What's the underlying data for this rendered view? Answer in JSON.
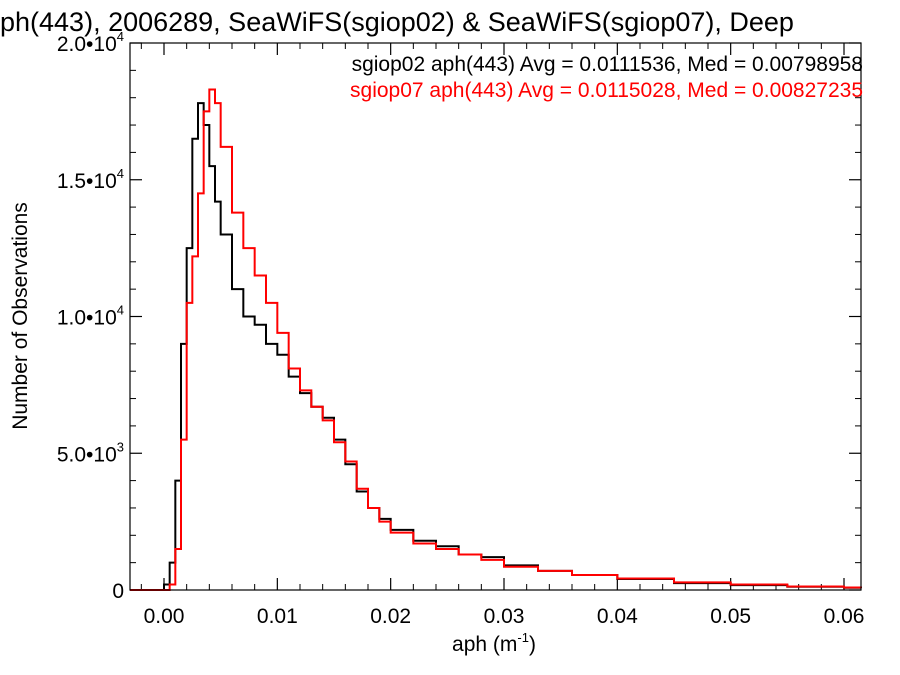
{
  "chart_data": {
    "type": "line",
    "title": "ph(443), 2006289, SeaWiFS(sgiop02) & SeaWiFS(sgiop07), Deep",
    "xlabel": "aph (m",
    "xlabel_sup": "-1",
    "xlabel_end": ")",
    "ylabel": "Number of Observations",
    "xlim": [
      -0.003,
      0.0615
    ],
    "ylim": [
      0,
      20000
    ],
    "grid": false,
    "legend_placement": "top-right",
    "x_ticks": [
      {
        "value": 0.0,
        "label": "0.00"
      },
      {
        "value": 0.01,
        "label": "0.01"
      },
      {
        "value": 0.02,
        "label": "0.02"
      },
      {
        "value": 0.03,
        "label": "0.03"
      },
      {
        "value": 0.04,
        "label": "0.04"
      },
      {
        "value": 0.05,
        "label": "0.05"
      },
      {
        "value": 0.06,
        "label": "0.06"
      }
    ],
    "y_ticks": [
      {
        "value": 0,
        "label": "0",
        "sup": ""
      },
      {
        "value": 5000,
        "label": "5.0•10",
        "sup": "3"
      },
      {
        "value": 10000,
        "label": "1.0•10",
        "sup": "4"
      },
      {
        "value": 15000,
        "label": "1.5•10",
        "sup": "4"
      },
      {
        "value": 20000,
        "label": "2.0•10",
        "sup": "4"
      }
    ],
    "series": [
      {
        "name": "sgiop02 aph(443) Avg = 0.0111536, Med = 0.00798958",
        "color": "#000000",
        "x": [
          -0.003,
          0.0,
          0.0005,
          0.001,
          0.0015,
          0.002,
          0.0025,
          0.003,
          0.0035,
          0.004,
          0.0045,
          0.005,
          0.006,
          0.007,
          0.008,
          0.009,
          0.01,
          0.011,
          0.012,
          0.013,
          0.014,
          0.015,
          0.016,
          0.017,
          0.018,
          0.019,
          0.02,
          0.022,
          0.024,
          0.026,
          0.028,
          0.03,
          0.033,
          0.036,
          0.04,
          0.045,
          0.05,
          0.055,
          0.06,
          0.0615
        ],
        "y": [
          0,
          200,
          1000,
          4000,
          9000,
          12500,
          16500,
          17800,
          17000,
          15500,
          14200,
          13000,
          11000,
          10000,
          9700,
          9000,
          8600,
          7800,
          7200,
          6700,
          6300,
          5500,
          4600,
          3600,
          3000,
          2600,
          2200,
          1800,
          1600,
          1300,
          1200,
          900,
          700,
          550,
          400,
          250,
          180,
          120,
          80,
          70
        ]
      },
      {
        "name": "sgiop07 aph(443) Avg = 0.0115028, Med = 0.00827235",
        "color": "#ff0000",
        "x": [
          -0.003,
          0.0,
          0.0005,
          0.001,
          0.0015,
          0.002,
          0.0025,
          0.003,
          0.0035,
          0.004,
          0.0045,
          0.005,
          0.006,
          0.007,
          0.008,
          0.009,
          0.01,
          0.011,
          0.012,
          0.013,
          0.014,
          0.015,
          0.016,
          0.017,
          0.018,
          0.019,
          0.02,
          0.022,
          0.024,
          0.026,
          0.028,
          0.03,
          0.033,
          0.036,
          0.04,
          0.045,
          0.05,
          0.055,
          0.06,
          0.0615
        ],
        "y": [
          0,
          0,
          200,
          1500,
          5500,
          10500,
          12200,
          14500,
          17500,
          18300,
          17800,
          16200,
          13800,
          12500,
          11500,
          10500,
          9400,
          8100,
          7300,
          6700,
          6200,
          5400,
          4700,
          3700,
          3000,
          2500,
          2100,
          1700,
          1500,
          1300,
          1100,
          850,
          700,
          550,
          420,
          280,
          200,
          130,
          90,
          80
        ]
      }
    ]
  }
}
